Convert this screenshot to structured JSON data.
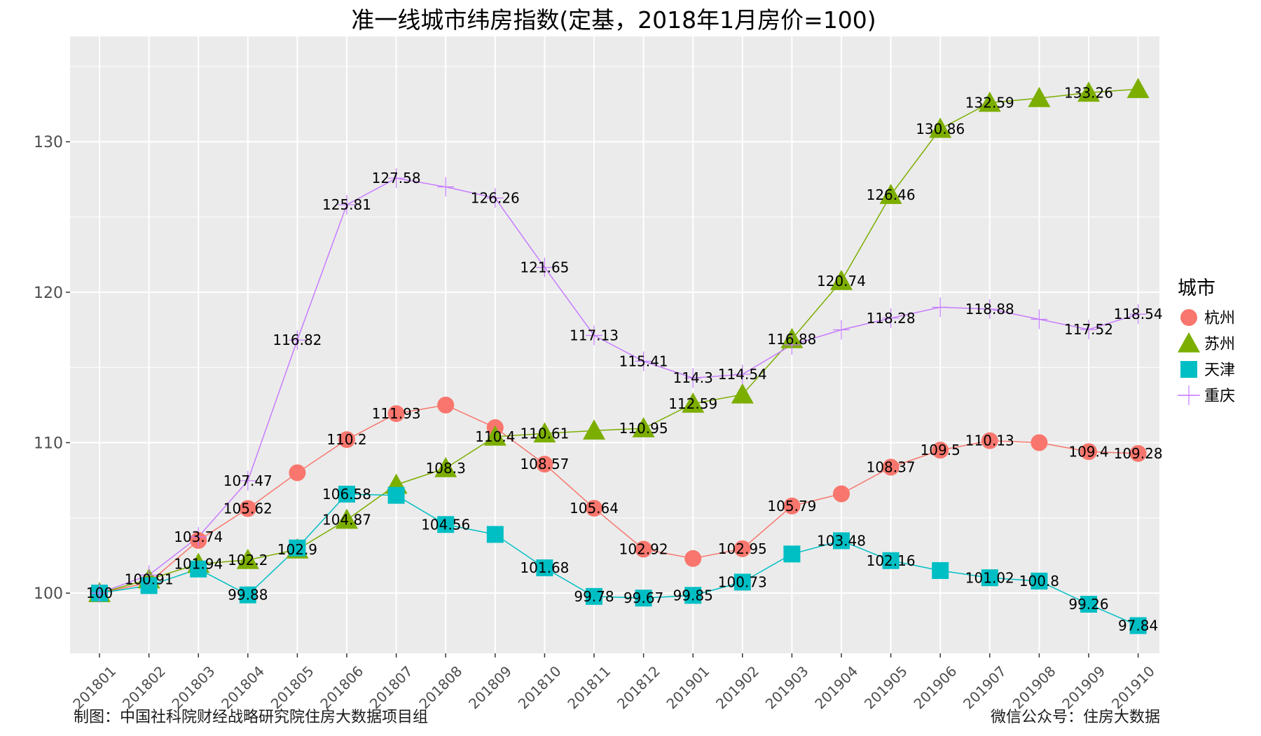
{
  "chart_data": {
    "type": "line",
    "title": "准一线城市纬房指数(定基，2018年1月房价=100)",
    "xlabel": "",
    "ylabel": "",
    "ylim": [
      96,
      137
    ],
    "yticks": [
      100,
      110,
      120,
      130
    ],
    "grid": true,
    "legend_position": "right",
    "legend_title": "城市",
    "categories": [
      "201801",
      "201802",
      "201803",
      "201804",
      "201805",
      "201806",
      "201807",
      "201808",
      "201809",
      "201810",
      "201811",
      "201812",
      "201901",
      "201902",
      "201903",
      "201904",
      "201905",
      "201906",
      "201907",
      "201908",
      "201909",
      "201910"
    ],
    "series": [
      {
        "name": "杭州",
        "color": "#F8766D",
        "marker": "circle",
        "values": [
          100,
          100.7,
          103.5,
          105.62,
          108.0,
          110.2,
          111.93,
          112.5,
          111.0,
          108.57,
          105.64,
          102.92,
          102.3,
          102.95,
          105.79,
          106.6,
          108.37,
          109.5,
          110.13,
          110.0,
          109.4,
          109.28
        ],
        "labels": {
          "0": "100",
          "3": "105.62",
          "5": "110.2",
          "6": "111.93",
          "9": "108.57",
          "10": "105.64",
          "11": "102.92",
          "13": "102.95",
          "14": "105.79",
          "16": "108.37",
          "17": "109.5",
          "18": "110.13",
          "20": "109.4",
          "21": "109.28"
        }
      },
      {
        "name": "苏州",
        "color": "#7CAE00",
        "marker": "triangle",
        "values": [
          100,
          100.91,
          101.94,
          102.2,
          102.9,
          104.87,
          107.2,
          108.3,
          110.4,
          110.61,
          110.8,
          110.95,
          112.59,
          113.2,
          116.88,
          120.74,
          126.46,
          130.86,
          132.59,
          132.9,
          133.26,
          133.5
        ],
        "labels": {
          "1": "100.91",
          "2": "101.94",
          "3": "102.2",
          "4": "102.9",
          "5": "104.87",
          "7": "108.3",
          "8": "110.4",
          "9": "110.61",
          "11": "110.95",
          "12": "112.59",
          "14": "116.88",
          "15": "120.74",
          "16": "126.46",
          "17": "130.86",
          "18": "132.59",
          "20": "133.26"
        }
      },
      {
        "name": "天津",
        "color": "#00BFC4",
        "marker": "square",
        "values": [
          100,
          100.5,
          101.6,
          99.88,
          103.0,
          106.58,
          106.5,
          104.56,
          103.9,
          101.68,
          99.78,
          99.67,
          99.85,
          100.73,
          102.6,
          103.48,
          102.16,
          101.5,
          101.02,
          100.8,
          99.26,
          97.84
        ],
        "labels": {
          "3": "99.88",
          "5": "106.58",
          "7": "104.56",
          "9": "101.68",
          "10": "99.78",
          "11": "99.67",
          "12": "99.85",
          "13": "100.73",
          "15": "103.48",
          "16": "102.16",
          "18": "101.02",
          "19": "100.8",
          "20": "99.26",
          "21": "97.84"
        }
      },
      {
        "name": "重庆",
        "color": "#C77CFF",
        "marker": "cross",
        "values": [
          100,
          101.2,
          103.74,
          107.47,
          116.82,
          125.81,
          127.58,
          127.0,
          126.26,
          121.65,
          117.13,
          115.41,
          114.3,
          114.54,
          116.5,
          117.5,
          118.28,
          119.0,
          118.88,
          118.2,
          117.52,
          118.54
        ],
        "labels": {
          "2": "103.74",
          "3": "107.47",
          "4": "116.82",
          "5": "125.81",
          "6": "127.58",
          "8": "126.26",
          "9": "121.65",
          "10": "117.13",
          "11": "115.41",
          "12": "114.3",
          "13": "114.54",
          "16": "118.28",
          "18": "118.88",
          "20": "117.52",
          "21": "118.54"
        }
      }
    ]
  },
  "footer": {
    "left": "制图：中国社科院财经战略研究院住房大数据项目组",
    "right": "微信公众号：住房大数据"
  },
  "colors": {
    "panel": "#EBEBEB",
    "grid_major": "#FFFFFF"
  }
}
